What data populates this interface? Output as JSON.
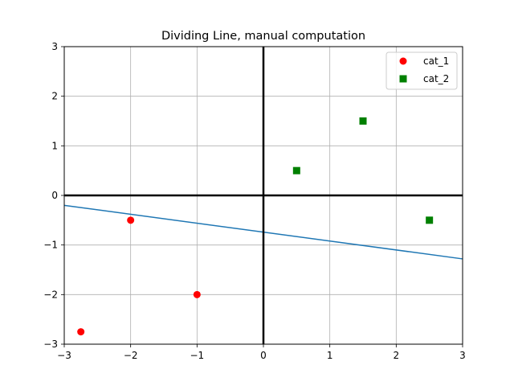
{
  "chart_data": {
    "type": "scatter",
    "title": "Dividing Line, manual computation",
    "xlabel": "",
    "ylabel": "",
    "xlim": [
      -3,
      3
    ],
    "ylim": [
      -3,
      3
    ],
    "xticks": [
      -3,
      -2,
      -1,
      0,
      1,
      2,
      3
    ],
    "yticks": [
      -3,
      -2,
      -1,
      0,
      1,
      2,
      3
    ],
    "xtick_labels": [
      "−3",
      "−2",
      "−1",
      "0",
      "1",
      "2",
      "3"
    ],
    "ytick_labels": [
      "−3",
      "−2",
      "−1",
      "0",
      "1",
      "2",
      "3"
    ],
    "grid": true,
    "axis_lines_at_zero": true,
    "legend_position": "top-right",
    "series": [
      {
        "name": "cat_1",
        "marker": "circle",
        "color": "#ff0000",
        "points": [
          [
            -2.75,
            -2.75
          ],
          [
            -2.0,
            -0.5
          ],
          [
            -1.0,
            -2.0
          ]
        ]
      },
      {
        "name": "cat_2",
        "marker": "square",
        "color": "#008000",
        "points": [
          [
            0.5,
            0.5
          ],
          [
            1.5,
            1.5
          ],
          [
            2.5,
            -0.5
          ]
        ]
      }
    ],
    "lines": [
      {
        "color": "#1f77b4",
        "points": [
          [
            -3,
            -0.2
          ],
          [
            3,
            -1.28
          ]
        ]
      }
    ]
  }
}
